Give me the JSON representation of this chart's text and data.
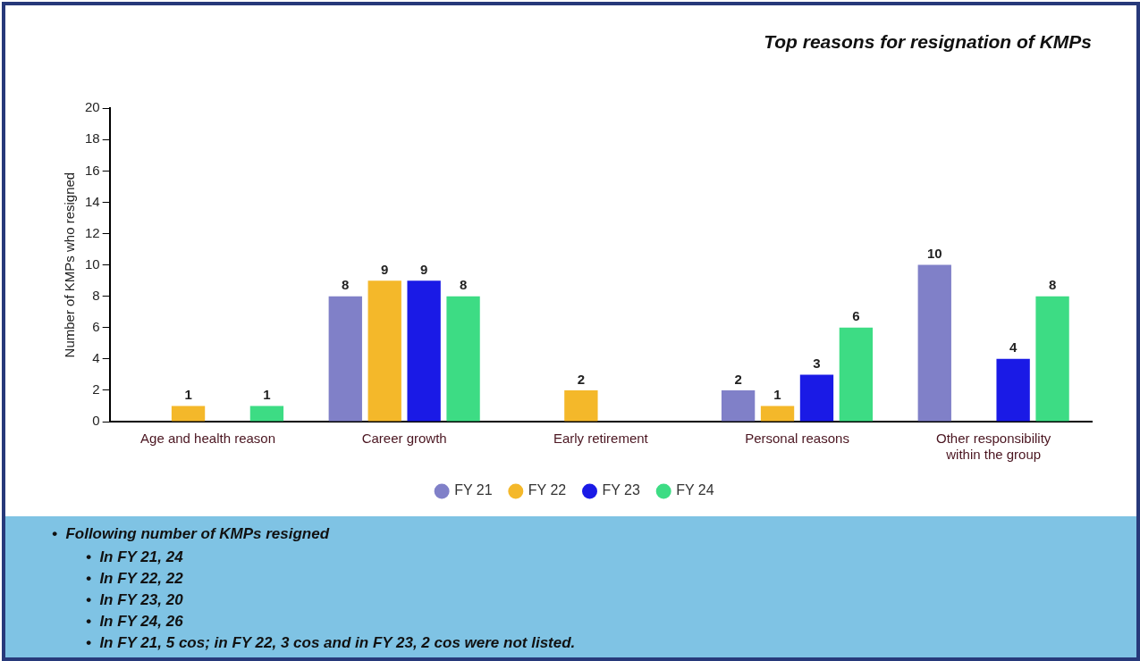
{
  "chart_data": {
    "type": "bar",
    "title": "Top reasons for resignation of KMPs",
    "ylabel": "Number of KMPs who resigned",
    "categories": [
      "Age and health reason",
      "Career growth",
      "Early retirement",
      "Personal reasons",
      "Other responsibility within the group"
    ],
    "series": [
      {
        "name": "FY 21",
        "color": "#8080c8",
        "values": [
          null,
          8,
          null,
          2,
          10
        ]
      },
      {
        "name": "FY 22",
        "color": "#f4b82a",
        "values": [
          1,
          9,
          2,
          1,
          null
        ]
      },
      {
        "name": "FY 23",
        "color": "#1a1ae6",
        "values": [
          null,
          9,
          null,
          3,
          4
        ]
      },
      {
        "name": "FY 24",
        "color": "#3ddc84",
        "values": [
          1,
          8,
          null,
          6,
          8
        ]
      }
    ],
    "ylim": [
      0,
      20
    ],
    "yticks": [
      0,
      2,
      4,
      6,
      8,
      10,
      12,
      14,
      16,
      18,
      20
    ],
    "grid": false,
    "legend": "bottom",
    "data_labels": true,
    "annotations": [
      "•  Following number of KMPs resigned",
      "•  In FY 21, 24",
      "•  In FY 22, 22",
      "•  In FY 23, 20",
      "•  In FY 24, 26",
      "•  In FY 21, 5 cos; in FY 22, 3 cos and in FY 23, 2 cos were not listed."
    ]
  }
}
